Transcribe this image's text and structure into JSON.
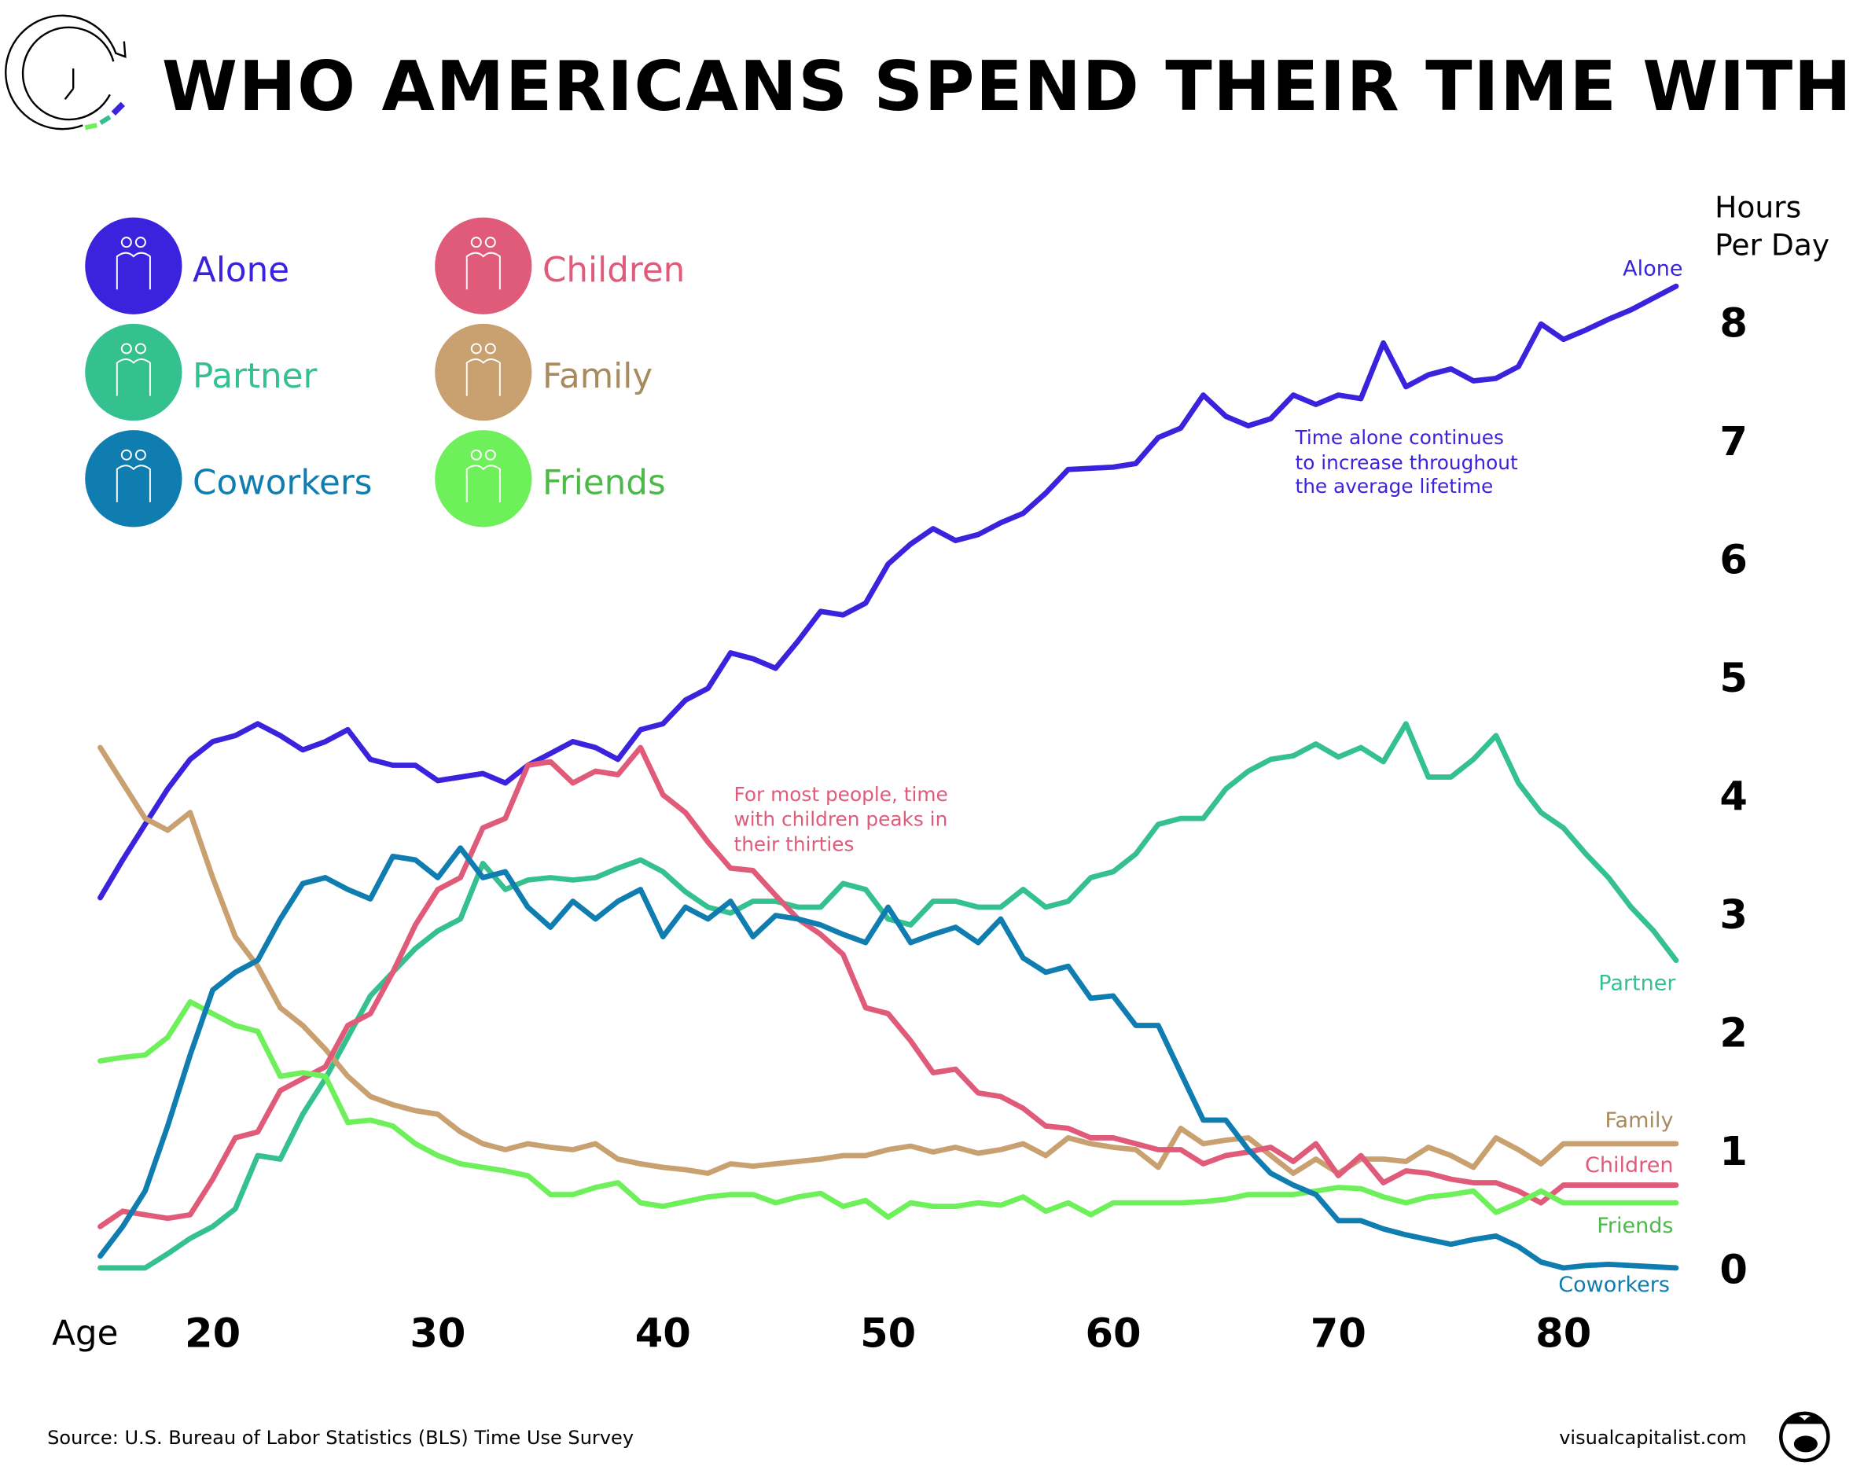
{
  "title": "WHO AMERICANS SPEND THEIR TIME WITH",
  "colors": {
    "alone": "#3b22dc",
    "partner": "#35c18f",
    "coworkers": "#0f7db0",
    "children": "#e05a7a",
    "family": "#c9a070",
    "friends": "#6ef05a",
    "family_label": "#a88a5e",
    "friends_label": "#4cb94a"
  },
  "legend": [
    {
      "key": "alone",
      "label": "Alone",
      "icon": "woman-icon"
    },
    {
      "key": "partner",
      "label": "Partner",
      "icon": "couple-icon"
    },
    {
      "key": "coworkers",
      "label": "Coworkers",
      "icon": "coworkers-icon"
    },
    {
      "key": "children",
      "label": "Children",
      "icon": "parent-child-hands-icon"
    },
    {
      "key": "family",
      "label": "Family",
      "icon": "family-table-icon"
    },
    {
      "key": "friends",
      "label": "Friends",
      "icon": "friends-dancing-icon"
    }
  ],
  "footer": {
    "source": "Source: U.S. Bureau of Labor Statistics (BLS) Time Use Survey",
    "brand": "visualcapitalist.com"
  },
  "chart_data": {
    "type": "line",
    "ylabel_line1": "Hours",
    "ylabel_line2": "Per Day",
    "xlabel": "Age",
    "xlim": [
      15,
      85
    ],
    "ylim": [
      0,
      8
    ],
    "x_ticks": [
      "20",
      "30",
      "40",
      "50",
      "60",
      "70",
      "80"
    ],
    "y_ticks": [
      "0",
      "1",
      "2",
      "3",
      "4",
      "5",
      "6",
      "7",
      "8"
    ],
    "grid": false,
    "legend_placement": "top-left",
    "x_start": 15,
    "annotations": {
      "alone": [
        "Time alone continues",
        "to increase throughout",
        "the average lifetime"
      ],
      "children": [
        "For most people, time",
        "with children peaks in",
        "their thirties"
      ]
    },
    "series": [
      {
        "key": "alone",
        "name": "Alone",
        "values": [
          3.13,
          3.45,
          3.75,
          4.05,
          4.3,
          4.45,
          4.5,
          4.6,
          4.5,
          4.38,
          4.45,
          4.55,
          4.3,
          4.25,
          4.25,
          4.12,
          4.15,
          4.18,
          4.1,
          4.25,
          4.35,
          4.45,
          4.4,
          4.3,
          4.55,
          4.6,
          4.8,
          4.9,
          5.2,
          5.15,
          5.07,
          5.3,
          5.55,
          5.52,
          5.62,
          5.95,
          6.12,
          6.25,
          6.15,
          6.2,
          6.3,
          6.38,
          6.55,
          6.75,
          6.76,
          6.77,
          6.8,
          7.02,
          7.1,
          7.38,
          7.2,
          7.12,
          7.18,
          7.38,
          7.3,
          7.38,
          7.35,
          7.82,
          7.45,
          7.55,
          7.6,
          7.5,
          7.52,
          7.62,
          7.98,
          7.85,
          7.93,
          8.02,
          8.1,
          8.2,
          8.3
        ]
      },
      {
        "key": "partner",
        "name": "Partner",
        "values": [
          0,
          0,
          0,
          0.12,
          0.25,
          0.35,
          0.5,
          0.95,
          0.92,
          1.3,
          1.6,
          1.95,
          2.3,
          2.5,
          2.7,
          2.85,
          2.95,
          3.42,
          3.2,
          3.28,
          3.3,
          3.28,
          3.3,
          3.38,
          3.45,
          3.35,
          3.18,
          3.05,
          3.0,
          3.1,
          3.1,
          3.05,
          3.05,
          3.25,
          3.2,
          2.95,
          2.9,
          3.1,
          3.1,
          3.05,
          3.05,
          3.2,
          3.05,
          3.1,
          3.3,
          3.35,
          3.5,
          3.75,
          3.8,
          3.8,
          4.05,
          4.2,
          4.3,
          4.33,
          4.43,
          4.32,
          4.4,
          4.28,
          4.6,
          4.15,
          4.15,
          4.3,
          4.5,
          4.1,
          3.85,
          3.72,
          3.5,
          3.3,
          3.05,
          2.85,
          2.6
        ]
      },
      {
        "key": "family",
        "name": "Family",
        "values": [
          4.4,
          4.1,
          3.8,
          3.7,
          3.85,
          3.3,
          2.8,
          2.55,
          2.2,
          2.05,
          1.85,
          1.62,
          1.45,
          1.38,
          1.33,
          1.3,
          1.15,
          1.05,
          1.0,
          1.05,
          1.02,
          1.0,
          1.05,
          0.92,
          0.88,
          0.85,
          0.83,
          0.8,
          0.88,
          0.86,
          0.88,
          0.9,
          0.92,
          0.95,
          0.95,
          1.0,
          1.03,
          0.98,
          1.02,
          0.97,
          1.0,
          1.05,
          0.95,
          1.1,
          1.05,
          1.02,
          1.0,
          0.85,
          1.18,
          1.05,
          1.08,
          1.1,
          0.95,
          0.8,
          0.92,
          0.8,
          0.92,
          0.92,
          0.9,
          1.02,
          0.95,
          0.85,
          1.1,
          1.0,
          0.88,
          1.05,
          1.05,
          1.05,
          1.05,
          1.05,
          1.05
        ]
      },
      {
        "key": "children",
        "name": "Children",
        "values": [
          0.35,
          0.48,
          0.45,
          0.42,
          0.45,
          0.75,
          1.1,
          1.15,
          1.5,
          1.6,
          1.7,
          2.05,
          2.15,
          2.5,
          2.9,
          3.2,
          3.3,
          3.72,
          3.8,
          4.25,
          4.28,
          4.1,
          4.2,
          4.17,
          4.4,
          4.0,
          3.85,
          3.6,
          3.38,
          3.36,
          3.15,
          2.95,
          2.82,
          2.65,
          2.2,
          2.15,
          1.92,
          1.65,
          1.68,
          1.48,
          1.45,
          1.35,
          1.2,
          1.18,
          1.1,
          1.1,
          1.05,
          1.0,
          1.0,
          0.88,
          0.95,
          0.98,
          1.02,
          0.9,
          1.05,
          0.78,
          0.95,
          0.72,
          0.82,
          0.8,
          0.75,
          0.72,
          0.72,
          0.65,
          0.55,
          0.7,
          0.7,
          0.7,
          0.7,
          0.7,
          0.7
        ]
      },
      {
        "key": "friends",
        "name": "Friends",
        "values": [
          1.75,
          1.78,
          1.8,
          1.95,
          2.25,
          2.15,
          2.05,
          2.0,
          1.62,
          1.65,
          1.62,
          1.23,
          1.25,
          1.2,
          1.05,
          0.95,
          0.88,
          0.85,
          0.82,
          0.78,
          0.62,
          0.62,
          0.68,
          0.72,
          0.55,
          0.52,
          0.56,
          0.6,
          0.62,
          0.62,
          0.55,
          0.6,
          0.63,
          0.52,
          0.57,
          0.43,
          0.55,
          0.52,
          0.52,
          0.55,
          0.53,
          0.6,
          0.48,
          0.55,
          0.45,
          0.55,
          0.55,
          0.55,
          0.55,
          0.56,
          0.58,
          0.62,
          0.62,
          0.62,
          0.65,
          0.68,
          0.67,
          0.6,
          0.55,
          0.6,
          0.62,
          0.65,
          0.47,
          0.55,
          0.65,
          0.55,
          0.55,
          0.55,
          0.55,
          0.55,
          0.55
        ]
      },
      {
        "key": "coworkers",
        "name": "Coworkers",
        "values": [
          0.1,
          0.35,
          0.65,
          1.2,
          1.8,
          2.35,
          2.5,
          2.6,
          2.95,
          3.25,
          3.3,
          3.2,
          3.12,
          3.48,
          3.45,
          3.3,
          3.55,
          3.3,
          3.35,
          3.05,
          2.88,
          3.1,
          2.95,
          3.1,
          3.2,
          2.8,
          3.05,
          2.95,
          3.1,
          2.8,
          2.98,
          2.95,
          2.9,
          2.82,
          2.75,
          3.05,
          2.75,
          2.82,
          2.88,
          2.75,
          2.95,
          2.62,
          2.5,
          2.55,
          2.28,
          2.3,
          2.05,
          2.05,
          1.65,
          1.25,
          1.25,
          1.0,
          0.8,
          0.7,
          0.62,
          0.4,
          0.4,
          0.33,
          0.28,
          0.24,
          0.2,
          0.24,
          0.27,
          0.18,
          0.05,
          0.0,
          0.02,
          0.03,
          0.02,
          0.01,
          0.0
        ]
      }
    ]
  }
}
